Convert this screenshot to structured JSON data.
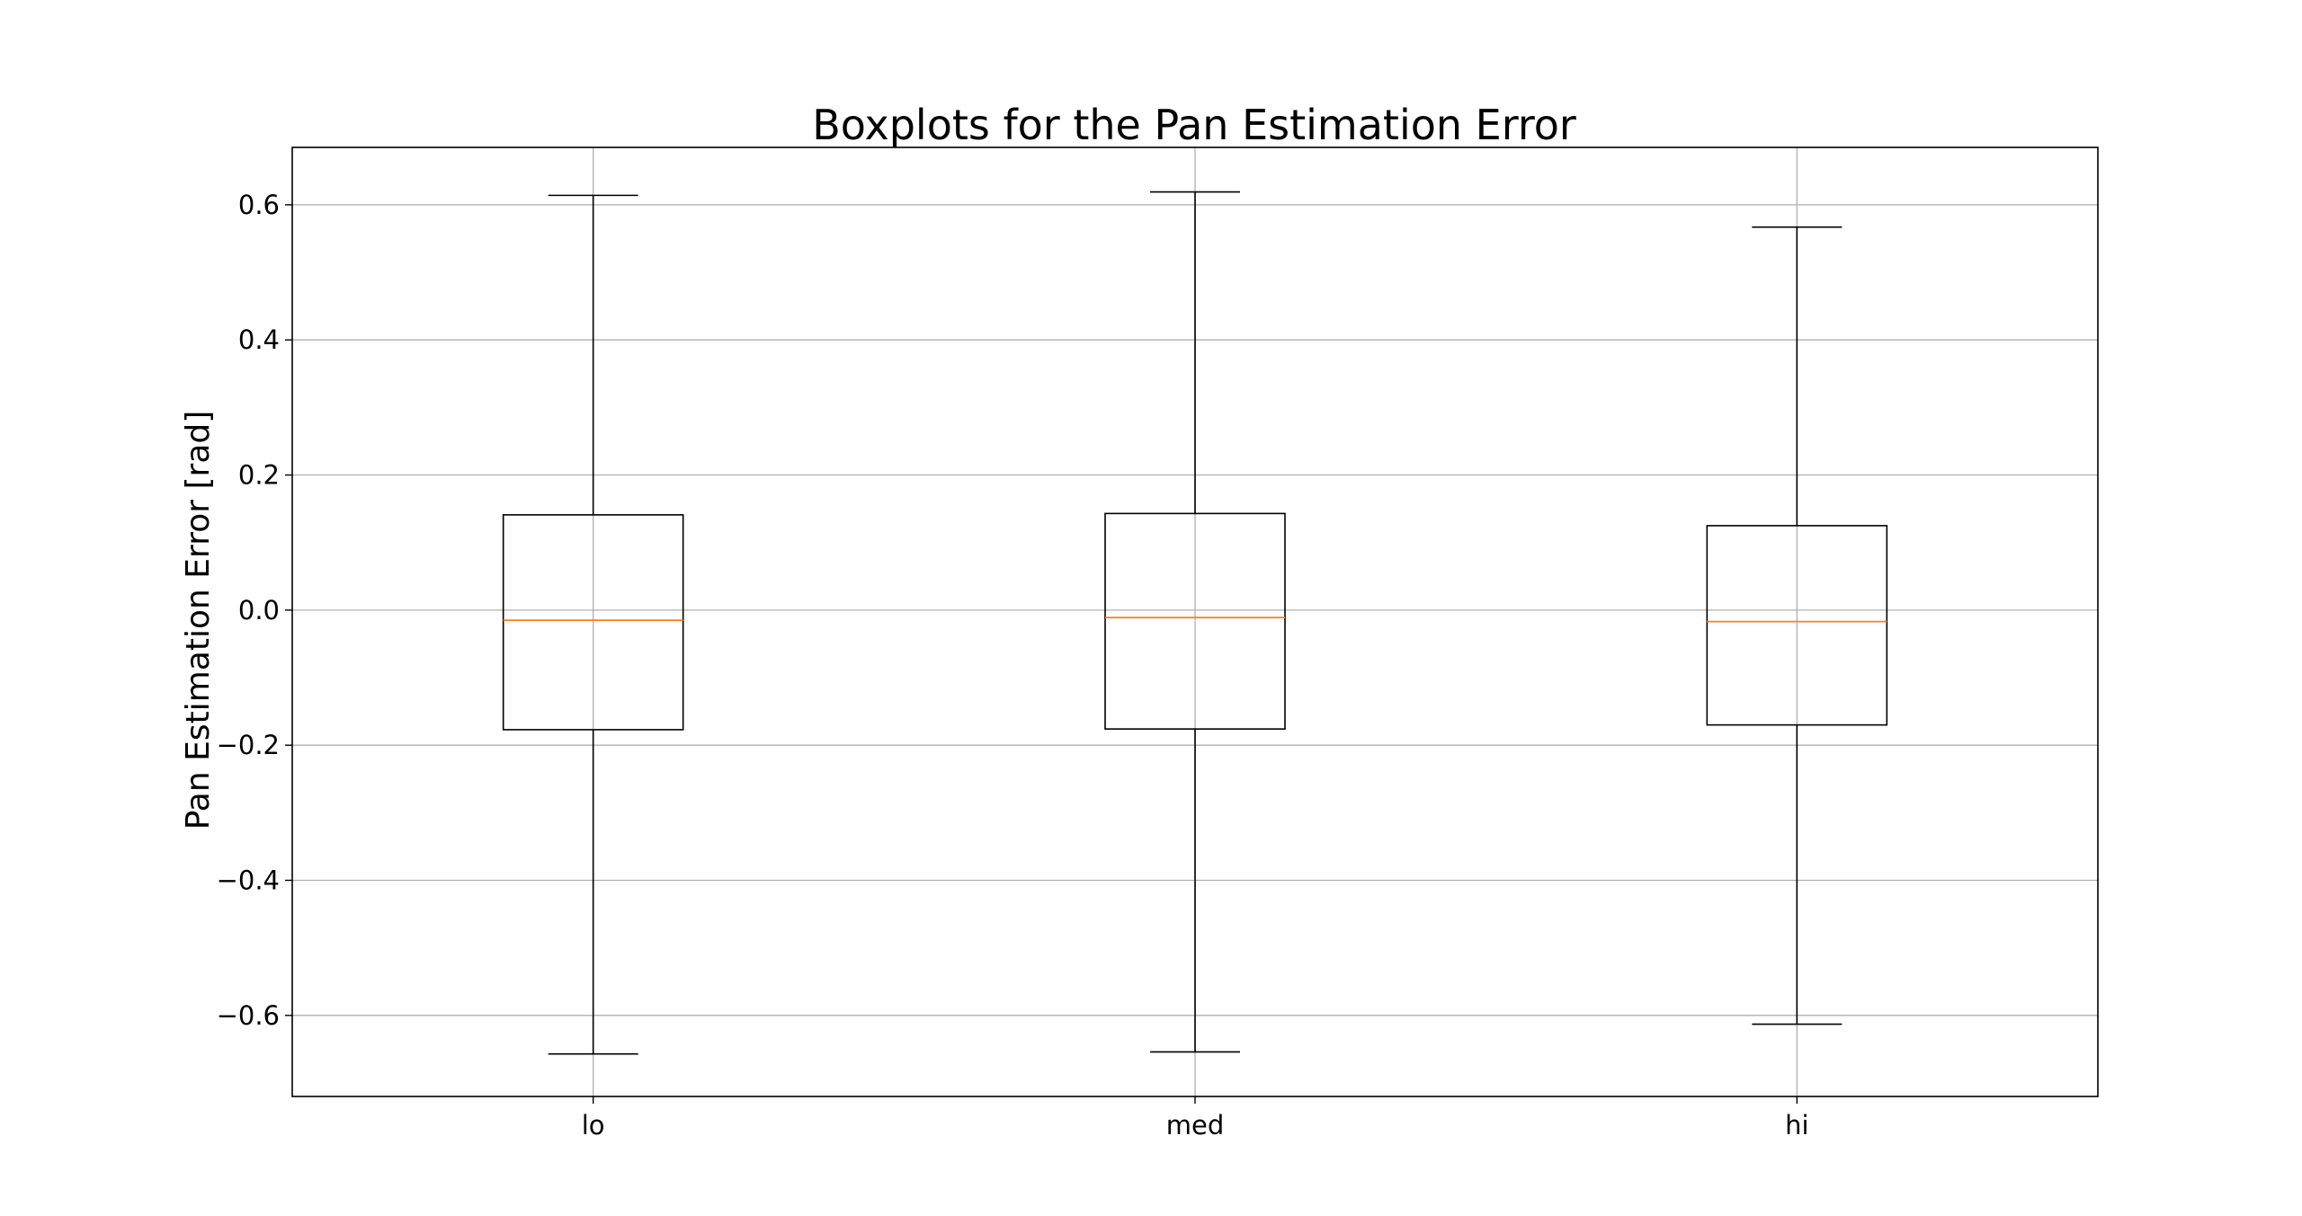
{
  "chart_data": {
    "type": "boxplot",
    "title": "Boxplots for the Pan Estimation Error",
    "xlabel": "",
    "ylabel": "Pan Estimation Error [rad]",
    "ylim": [
      -0.72,
      0.685
    ],
    "grid": true,
    "yticks": [
      -0.6,
      -0.4,
      -0.2,
      0.0,
      0.2,
      0.4,
      0.6
    ],
    "ytick_labels": [
      "−0.6",
      "−0.4",
      "−0.2",
      "0.0",
      "0.2",
      "0.4",
      "0.6"
    ],
    "categories": [
      "lo",
      "med",
      "hi"
    ],
    "boxes": [
      {
        "name": "lo",
        "whisker_low": -0.657,
        "q1": -0.177,
        "median": -0.015,
        "q3": 0.141,
        "whisker_high": 0.614
      },
      {
        "name": "med",
        "whisker_low": -0.654,
        "q1": -0.176,
        "median": -0.011,
        "q3": 0.143,
        "whisker_high": 0.619
      },
      {
        "name": "hi",
        "whisker_low": -0.613,
        "q1": -0.17,
        "median": -0.017,
        "q3": 0.125,
        "whisker_high": 0.567
      }
    ],
    "colors": {
      "box": "#000000",
      "median": "#ff7f0e",
      "grid": "#b0b0b0",
      "axes": "#000000"
    }
  }
}
